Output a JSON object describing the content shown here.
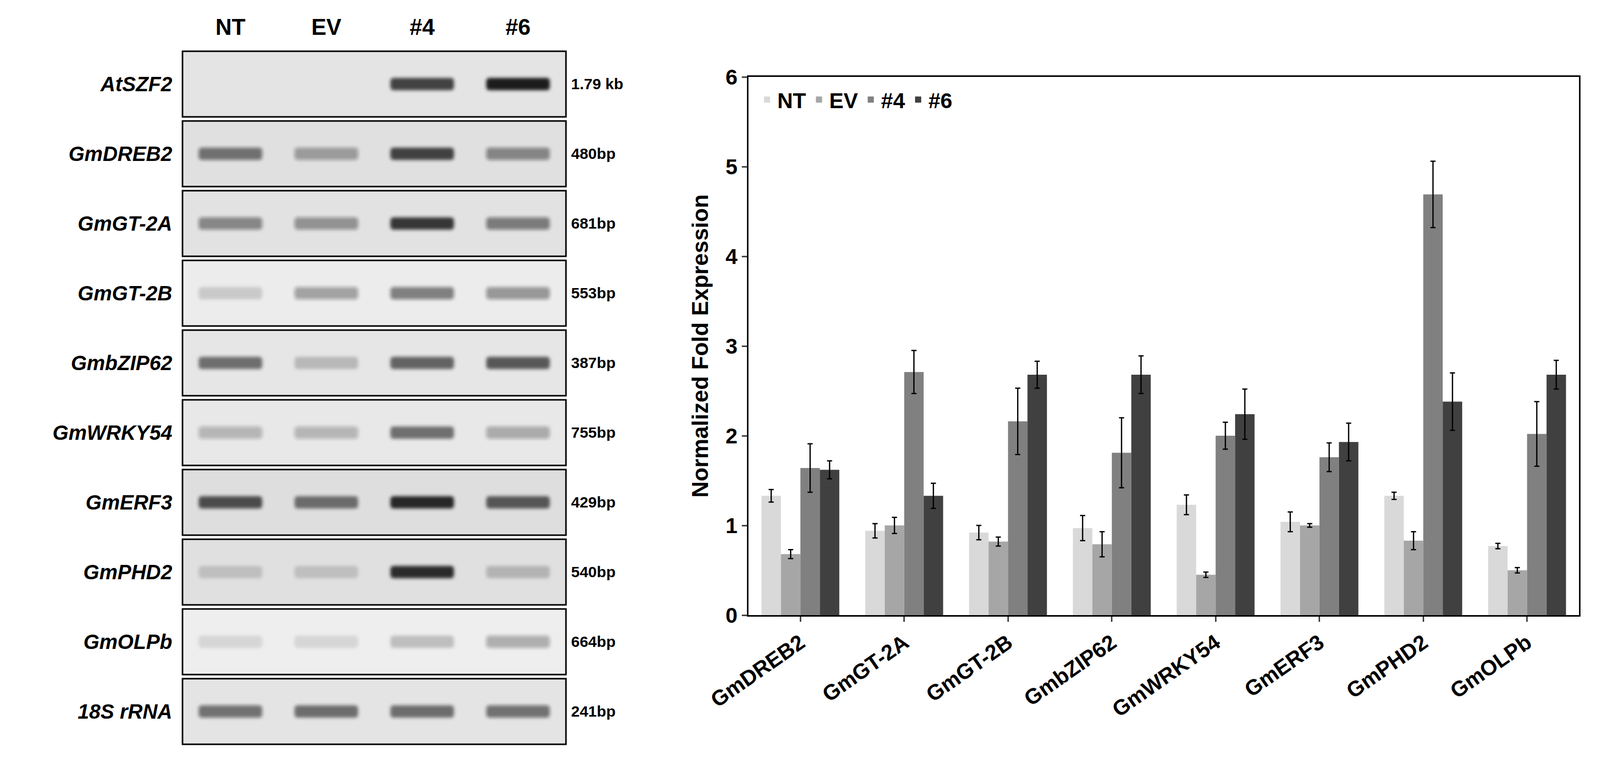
{
  "chart_data": {
    "type": "bar",
    "y_label": "Normalized Fold Expression",
    "categories": [
      "GmDREB2",
      "GmGT-2A",
      "GmGT-2B",
      "GmbZIP62",
      "GmWRKY54",
      "GmERF3",
      "GmPHD2",
      "GmOLPb"
    ],
    "series": [
      {
        "name": "NT",
        "color": "#d9d9d9",
        "values": [
          1.33,
          0.94,
          0.92,
          0.97,
          1.23,
          1.04,
          1.33,
          0.77
        ],
        "errors": [
          0.07,
          0.08,
          0.08,
          0.14,
          0.11,
          0.11,
          0.04,
          0.03
        ]
      },
      {
        "name": "EV",
        "color": "#a6a6a6",
        "values": [
          0.68,
          1.0,
          0.82,
          0.79,
          0.45,
          1.0,
          0.83,
          0.5
        ],
        "errors": [
          0.05,
          0.09,
          0.05,
          0.14,
          0.03,
          0.02,
          0.1,
          0.03
        ]
      },
      {
        "name": "#4",
        "color": "#808080",
        "values": [
          1.64,
          2.71,
          2.16,
          1.81,
          2.0,
          1.76,
          4.69,
          2.02
        ],
        "errors": [
          0.27,
          0.24,
          0.37,
          0.39,
          0.15,
          0.16,
          0.37,
          0.36
        ]
      },
      {
        "name": "#6",
        "color": "#404040",
        "values": [
          1.62,
          1.33,
          2.68,
          2.68,
          2.24,
          1.93,
          2.38,
          2.68
        ],
        "errors": [
          0.1,
          0.14,
          0.15,
          0.21,
          0.28,
          0.21,
          0.32,
          0.16
        ]
      }
    ],
    "ylim": [
      0,
      6
    ],
    "yticks": [
      0,
      1,
      2,
      3,
      4,
      5,
      6
    ],
    "grid": false,
    "legend": "top-left"
  },
  "gel": {
    "lanes": [
      "NT",
      "EV",
      "#4",
      "#6"
    ],
    "rows": [
      {
        "gene": "AtSZF2",
        "size": "1.79 kb",
        "intensity": [
          0,
          0,
          0.8,
          1
        ]
      },
      {
        "gene": "GmDREB2",
        "size": "480bp",
        "intensity": [
          0.55,
          0.35,
          0.8,
          0.45
        ]
      },
      {
        "gene": "GmGT-2A",
        "size": "681bp",
        "intensity": [
          0.45,
          0.4,
          0.85,
          0.5
        ]
      },
      {
        "gene": "GmGT-2B",
        "size": "553bp",
        "intensity": [
          0.15,
          0.35,
          0.5,
          0.4
        ]
      },
      {
        "gene": "GmbZIP62",
        "size": "387bp",
        "intensity": [
          0.6,
          0.2,
          0.65,
          0.7
        ]
      },
      {
        "gene": "GmWRKY54",
        "size": "755bp",
        "intensity": [
          0.25,
          0.25,
          0.6,
          0.3
        ]
      },
      {
        "gene": "GmERF3",
        "size": "429bp",
        "intensity": [
          0.75,
          0.6,
          0.95,
          0.7
        ]
      },
      {
        "gene": "GmPHD2",
        "size": "540bp",
        "intensity": [
          0.15,
          0.15,
          0.9,
          0.2
        ]
      },
      {
        "gene": "GmOLPb",
        "size": "664bp",
        "intensity": [
          0.1,
          0.1,
          0.2,
          0.3
        ]
      },
      {
        "gene": "18S rRNA",
        "size": "241bp",
        "intensity": [
          0.55,
          0.6,
          0.6,
          0.55
        ]
      }
    ]
  }
}
